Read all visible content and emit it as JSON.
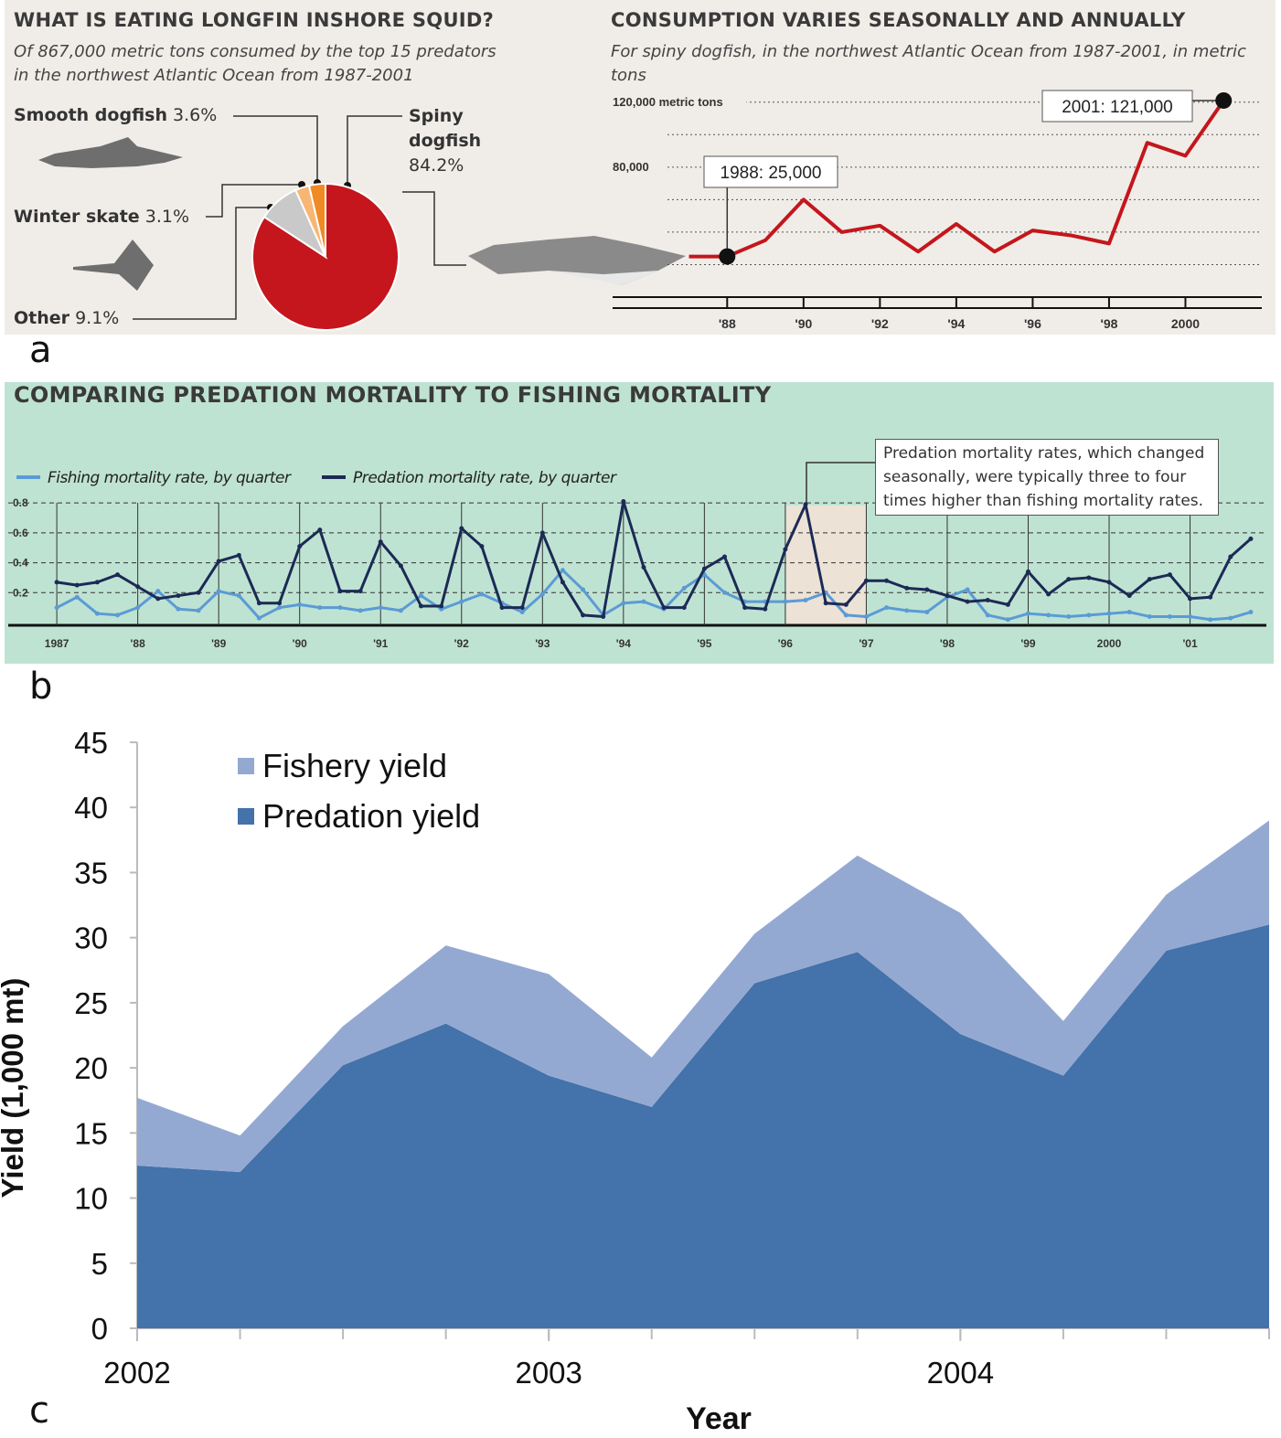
{
  "panel_labels": [
    "a",
    "b",
    "c"
  ],
  "chart_data": [
    {
      "type": "pie",
      "title": "WHAT IS EATING LONGFIN INSHORE SQUID?",
      "subtitle": "Of 867,000 metric tons consumed by the top 15 predators in the northwest Atlantic Ocean from 1987-2001",
      "categories": [
        "Spiny dogfish",
        "Other",
        "Winter skate",
        "Smooth dogfish"
      ],
      "values": [
        84.2,
        9.1,
        3.1,
        3.6
      ],
      "value_labels": [
        "84.2%",
        "9.1%",
        "3.1%",
        "3.6%"
      ],
      "colors": [
        "#c4161c",
        "#c9c9c9",
        "#f7b673",
        "#f08a24"
      ]
    },
    {
      "type": "line",
      "title": "CONSUMPTION VARIES SEASONALLY AND ANNUALLY",
      "subtitle": "For spiny dogfish, in the northwest Atlantic Ocean from 1987-2001, in metric tons",
      "x": [
        1987,
        1988,
        1989,
        1990,
        1991,
        1992,
        1993,
        1994,
        1995,
        1996,
        1997,
        1998,
        1999,
        2000,
        2001
      ],
      "values": [
        25000,
        25000,
        35000,
        60000,
        40000,
        44000,
        28000,
        45000,
        28000,
        41000,
        38000,
        33000,
        95000,
        87000,
        121000
      ],
      "color": "#c4161c",
      "annotations": [
        "1988: 25,000",
        "2001: 121,000"
      ],
      "xlim": [
        1985,
        2002
      ],
      "ylim": [
        0,
        130000
      ],
      "xticks": [
        {
          "value": 1988,
          "label": "'88"
        },
        {
          "value": 1990,
          "label": "'90"
        },
        {
          "value": 1992,
          "label": "'92"
        },
        {
          "value": 1994,
          "label": "'94"
        },
        {
          "value": 1996,
          "label": "'96"
        },
        {
          "value": 1998,
          "label": "'98"
        },
        2000
      ],
      "yticks": [
        {
          "value": 20000,
          "label": null
        },
        {
          "value": 40000,
          "label": null
        },
        {
          "value": 60000,
          "label": null
        },
        {
          "value": 80000,
          "label": "80,000"
        },
        {
          "value": 100000,
          "label": null
        },
        {
          "value": 120000,
          "label": "120,000 metric tons"
        }
      ],
      "grid": true
    },
    {
      "type": "line",
      "title": "COMPARING PREDATION MORTALITY TO FISHING MORTALITY",
      "annotations": [
        "Predation mortality rates, which changed seasonally, were typically three to four times higher than fishing mortality rates."
      ],
      "x": [
        1987,
        1987.25,
        1987.5,
        1987.75,
        1988,
        1988.25,
        1988.5,
        1988.75,
        1989,
        1989.25,
        1989.5,
        1989.75,
        1990,
        1990.25,
        1990.5,
        1990.75,
        1991,
        1991.25,
        1991.5,
        1991.75,
        1992,
        1992.25,
        1992.5,
        1992.75,
        1993,
        1993.25,
        1993.5,
        1993.75,
        1994,
        1994.25,
        1994.5,
        1994.75,
        1995,
        1995.25,
        1995.5,
        1995.75,
        1996,
        1996.25,
        1996.5,
        1996.75,
        1997,
        1997.25,
        1997.5,
        1997.75,
        1998,
        1998.25,
        1998.5,
        1998.75,
        1999,
        1999.25,
        1999.5,
        1999.75,
        2000,
        2000.25,
        2000.5,
        2000.75,
        2001,
        2001.25,
        2001.5,
        2001.75
      ],
      "series": [
        {
          "name": "Fishing mortality rate, by quarter",
          "color": "#5b9bd5",
          "values": [
            0.1,
            0.17,
            0.06,
            0.05,
            0.1,
            0.21,
            0.09,
            0.08,
            0.21,
            0.18,
            0.03,
            0.1,
            0.12,
            0.1,
            0.1,
            0.08,
            0.1,
            0.08,
            0.18,
            0.09,
            0.14,
            0.19,
            0.13,
            0.07,
            0.19,
            0.35,
            0.22,
            0.05,
            0.13,
            0.14,
            0.09,
            0.23,
            0.32,
            0.2,
            0.14,
            0.14,
            0.14,
            0.15,
            0.2,
            0.05,
            0.04,
            0.1,
            0.08,
            0.07,
            0.17,
            0.22,
            0.05,
            0.02,
            0.06,
            0.05,
            0.04,
            0.05,
            0.06,
            0.07,
            0.04,
            0.04,
            0.04,
            0.02,
            0.03,
            0.07
          ]
        },
        {
          "name": "Predation mortality rate, by quarter",
          "color": "#1c2a55",
          "values": [
            0.27,
            0.25,
            0.27,
            0.32,
            0.24,
            0.16,
            0.18,
            0.2,
            0.41,
            0.45,
            0.13,
            0.13,
            0.51,
            0.62,
            0.21,
            0.21,
            0.54,
            0.38,
            0.11,
            0.11,
            0.63,
            0.51,
            0.1,
            0.1,
            0.6,
            0.27,
            0.05,
            0.04,
            0.81,
            0.37,
            0.1,
            0.1,
            0.36,
            0.44,
            0.1,
            0.09,
            0.49,
            0.79,
            0.13,
            0.12,
            0.28,
            0.28,
            0.23,
            0.22,
            0.18,
            0.14,
            0.15,
            0.12,
            0.34,
            0.19,
            0.29,
            0.3,
            0.27,
            0.18,
            0.29,
            0.32,
            0.16,
            0.17,
            0.44,
            0.56
          ]
        }
      ],
      "markers": true,
      "xlim": [
        1986.4,
        2001.92
      ],
      "ylim": [
        0,
        0.85
      ],
      "xticks": [
        1987,
        {
          "value": 1988,
          "label": "'88"
        },
        {
          "value": 1989,
          "label": "'89"
        },
        {
          "value": 1990,
          "label": "'90"
        },
        {
          "value": 1991,
          "label": "'91"
        },
        {
          "value": 1992,
          "label": "'92"
        },
        {
          "value": 1993,
          "label": "'93"
        },
        {
          "value": 1994,
          "label": "'94"
        },
        {
          "value": 1995,
          "label": "'95"
        },
        {
          "value": 1996,
          "label": "'96"
        },
        {
          "value": 1997,
          "label": "'97"
        },
        {
          "value": 1998,
          "label": "'98"
        },
        {
          "value": 1999,
          "label": "'99"
        },
        2000,
        {
          "value": 2001,
          "label": "'01"
        }
      ],
      "yticks": [
        0.2,
        0.4,
        0.6,
        0.8
      ],
      "grid": true
    },
    {
      "type": "area",
      "stacked": true,
      "xlabel": "Year",
      "ylabel": "Yield (1,000 mt)",
      "x": [
        2002,
        2002.25,
        2002.5,
        2002.75,
        2003,
        2003.25,
        2003.5,
        2003.75,
        2004,
        2004.25,
        2004.5,
        2004.75
      ],
      "series": [
        {
          "name": "Fishery yield",
          "color": "#94a9d2",
          "values": [
            5.2,
            2.8,
            3.0,
            6.0,
            7.8,
            3.8,
            3.8,
            7.4,
            9.3,
            4.2,
            4.3,
            8.0
          ]
        },
        {
          "name": "Predation yield",
          "color": "#4472aa",
          "values": [
            12.5,
            12,
            20.2,
            23.4,
            19.4,
            17,
            26.5,
            28.9,
            22.6,
            19.4,
            29,
            31
          ]
        }
      ],
      "xlim": [
        2002,
        2004.75
      ],
      "ylim": [
        0,
        45
      ],
      "xticks": [
        2002,
        2003,
        2004
      ],
      "yticks": [
        0,
        5,
        10,
        15,
        20,
        25,
        30,
        35,
        40,
        45
      ]
    }
  ]
}
